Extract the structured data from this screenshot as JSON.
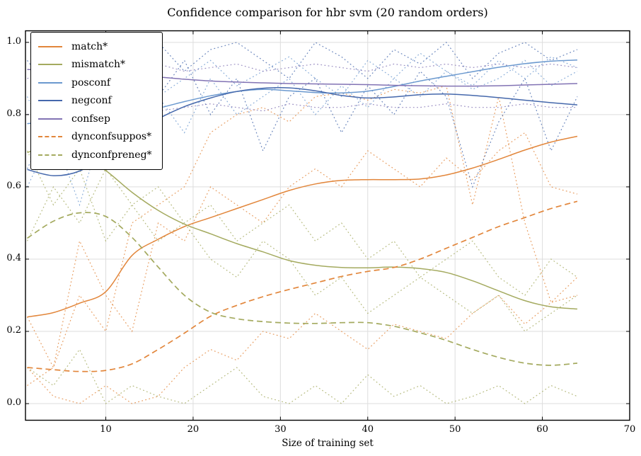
{
  "title": "Confidence comparison for hbr svm (20 random orders)",
  "axes": {
    "xlabel": "Size of training set",
    "xtick_labels": [
      "10",
      "20",
      "30",
      "40",
      "50",
      "60",
      "70"
    ],
    "ytick_labels": [
      "0.0",
      "0.2",
      "0.4",
      "0.6",
      "0.8",
      "1.0"
    ],
    "xticks": [
      10,
      20,
      30,
      40,
      50,
      60,
      70
    ],
    "yticks": [
      0.0,
      0.2,
      0.4,
      0.6,
      0.8,
      1.0
    ]
  },
  "chart_data": {
    "type": "line",
    "title": "Confidence comparison for hbr svm (20 random orders)",
    "xlabel": "Size of training set",
    "ylabel": "",
    "xlim": [
      0.8,
      70
    ],
    "ylim": [
      -0.046,
      1.032
    ],
    "grid": true,
    "grid_color": "#dddddd",
    "legend_position": "upper-left",
    "palette": {
      "match": "#e2863b",
      "mismatch": "#a4aa5f",
      "posconf": "#6b99cf",
      "negconf": "#4568ac",
      "confsep": "#8273b4"
    },
    "x": [
      1,
      4,
      7,
      10,
      13,
      16,
      19,
      22,
      25,
      28,
      31,
      34,
      37,
      40,
      43,
      46,
      49,
      52,
      55,
      58,
      61,
      64
    ],
    "series": [
      {
        "name": "match*",
        "key": "match",
        "style": "solid",
        "values": [
          0.24,
          0.252,
          0.278,
          0.31,
          0.41,
          0.455,
          0.49,
          0.515,
          0.54,
          0.565,
          0.59,
          0.608,
          0.618,
          0.62,
          0.62,
          0.622,
          0.633,
          0.652,
          0.676,
          0.702,
          0.724,
          0.74
        ]
      },
      {
        "name": "mismatch*",
        "key": "mismatch",
        "style": "solid",
        "values": [
          0.695,
          0.715,
          0.69,
          0.645,
          0.585,
          0.535,
          0.497,
          0.47,
          0.443,
          0.42,
          0.396,
          0.383,
          0.377,
          0.376,
          0.378,
          0.374,
          0.363,
          0.34,
          0.312,
          0.285,
          0.268,
          0.262
        ]
      },
      {
        "name": "posconf",
        "key": "posconf",
        "style": "solid",
        "values": [
          0.775,
          0.782,
          0.79,
          0.798,
          0.806,
          0.818,
          0.836,
          0.852,
          0.864,
          0.87,
          0.866,
          0.861,
          0.86,
          0.865,
          0.878,
          0.893,
          0.906,
          0.919,
          0.931,
          0.941,
          0.948,
          0.951
        ]
      },
      {
        "name": "negconf",
        "key": "negconf",
        "style": "solid",
        "values": [
          0.648,
          0.631,
          0.644,
          0.69,
          0.74,
          0.788,
          0.822,
          0.846,
          0.864,
          0.873,
          0.874,
          0.866,
          0.853,
          0.846,
          0.849,
          0.855,
          0.857,
          0.853,
          0.847,
          0.84,
          0.833,
          0.827
        ]
      },
      {
        "name": "confsep",
        "key": "confsep",
        "style": "solid",
        "values": [
          0.925,
          0.922,
          0.918,
          0.913,
          0.908,
          0.904,
          0.898,
          0.893,
          0.89,
          0.888,
          0.886,
          0.885,
          0.884,
          0.883,
          0.881,
          0.88,
          0.879,
          0.879,
          0.88,
          0.882,
          0.884,
          0.886
        ]
      },
      {
        "name": "dynconfsuppos*",
        "key": "match",
        "style": "dashed",
        "values": [
          0.1,
          0.094,
          0.089,
          0.092,
          0.11,
          0.15,
          0.195,
          0.242,
          0.272,
          0.296,
          0.316,
          0.334,
          0.352,
          0.366,
          0.377,
          0.4,
          0.43,
          0.46,
          0.49,
          0.515,
          0.54,
          0.56
        ]
      },
      {
        "name": "dynconfpreneg*",
        "key": "mismatch",
        "style": "dashed",
        "values": [
          0.458,
          0.505,
          0.528,
          0.518,
          0.46,
          0.378,
          0.3,
          0.253,
          0.235,
          0.227,
          0.223,
          0.222,
          0.224,
          0.224,
          0.214,
          0.196,
          0.175,
          0.15,
          0.128,
          0.112,
          0.106,
          0.112
        ]
      }
    ],
    "background_runs": [
      {
        "key": "match",
        "values": [
          0.05,
          0.1,
          0.3,
          0.2,
          0.5,
          0.55,
          0.6,
          0.75,
          0.8,
          0.82,
          0.78,
          0.85,
          0.86,
          0.84,
          0.87,
          0.86,
          0.88,
          0.55,
          0.85,
          0.5,
          0.28,
          0.35
        ]
      },
      {
        "key": "match",
        "values": [
          0.1,
          0.02,
          0.0,
          0.05,
          0.0,
          0.02,
          0.1,
          0.15,
          0.12,
          0.2,
          0.18,
          0.25,
          0.2,
          0.15,
          0.22,
          0.2,
          0.18,
          0.25,
          0.3,
          0.22,
          0.28,
          0.3
        ]
      },
      {
        "key": "match",
        "values": [
          0.24,
          0.1,
          0.45,
          0.3,
          0.2,
          0.5,
          0.45,
          0.6,
          0.55,
          0.5,
          0.6,
          0.65,
          0.6,
          0.7,
          0.65,
          0.6,
          0.68,
          0.62,
          0.7,
          0.75,
          0.6,
          0.58
        ]
      },
      {
        "key": "mismatch",
        "values": [
          0.45,
          0.6,
          0.5,
          0.65,
          0.55,
          0.45,
          0.5,
          0.4,
          0.35,
          0.45,
          0.4,
          0.3,
          0.35,
          0.25,
          0.3,
          0.35,
          0.3,
          0.25,
          0.3,
          0.2,
          0.25,
          0.3
        ]
      },
      {
        "key": "mismatch",
        "values": [
          0.1,
          0.05,
          0.15,
          0.0,
          0.05,
          0.02,
          0.0,
          0.05,
          0.1,
          0.02,
          0.0,
          0.05,
          0.0,
          0.08,
          0.02,
          0.05,
          0.0,
          0.02,
          0.05,
          0.0,
          0.05,
          0.02
        ]
      },
      {
        "key": "mismatch",
        "values": [
          0.7,
          0.55,
          0.65,
          0.45,
          0.55,
          0.6,
          0.5,
          0.55,
          0.45,
          0.5,
          0.55,
          0.45,
          0.5,
          0.4,
          0.45,
          0.35,
          0.4,
          0.45,
          0.35,
          0.3,
          0.4,
          0.35
        ]
      },
      {
        "key": "posconf",
        "values": [
          0.85,
          0.7,
          0.9,
          0.8,
          0.95,
          0.85,
          0.9,
          0.95,
          0.88,
          0.92,
          0.96,
          0.9,
          0.85,
          0.95,
          0.9,
          0.97,
          0.92,
          0.88,
          0.95,
          0.9,
          0.96,
          0.93
        ]
      },
      {
        "key": "posconf",
        "values": [
          0.6,
          0.75,
          0.55,
          0.8,
          0.65,
          0.85,
          0.75,
          0.9,
          0.8,
          0.85,
          0.9,
          0.8,
          0.88,
          0.82,
          0.9,
          0.85,
          0.92,
          0.87,
          0.9,
          0.95,
          0.88,
          0.92
        ]
      },
      {
        "key": "negconf",
        "values": [
          0.95,
          0.85,
          1.0,
          0.9,
          0.97,
          1.0,
          0.92,
          0.98,
          1.0,
          0.95,
          0.9,
          1.0,
          0.96,
          0.9,
          0.98,
          0.94,
          1.0,
          0.9,
          0.97,
          1.0,
          0.95,
          0.98
        ]
      },
      {
        "key": "negconf",
        "values": [
          0.65,
          0.8,
          0.7,
          0.9,
          0.75,
          0.85,
          0.95,
          0.8,
          0.9,
          0.7,
          0.85,
          0.9,
          0.75,
          0.88,
          0.8,
          0.92,
          0.85,
          0.6,
          0.78,
          0.9,
          0.7,
          0.85
        ]
      },
      {
        "key": "confsep",
        "values": [
          0.9,
          0.92,
          0.88,
          0.93,
          0.9,
          0.94,
          0.92,
          0.93,
          0.94,
          0.92,
          0.93,
          0.94,
          0.93,
          0.92,
          0.94,
          0.93,
          0.94,
          0.93,
          0.94,
          0.93,
          0.94,
          0.93
        ]
      },
      {
        "key": "confsep",
        "values": [
          0.8,
          0.84,
          0.82,
          0.8,
          0.83,
          0.81,
          0.82,
          0.83,
          0.82,
          0.81,
          0.83,
          0.82,
          0.82,
          0.83,
          0.82,
          0.82,
          0.83,
          0.82,
          0.82,
          0.83,
          0.82,
          0.82
        ]
      }
    ]
  }
}
